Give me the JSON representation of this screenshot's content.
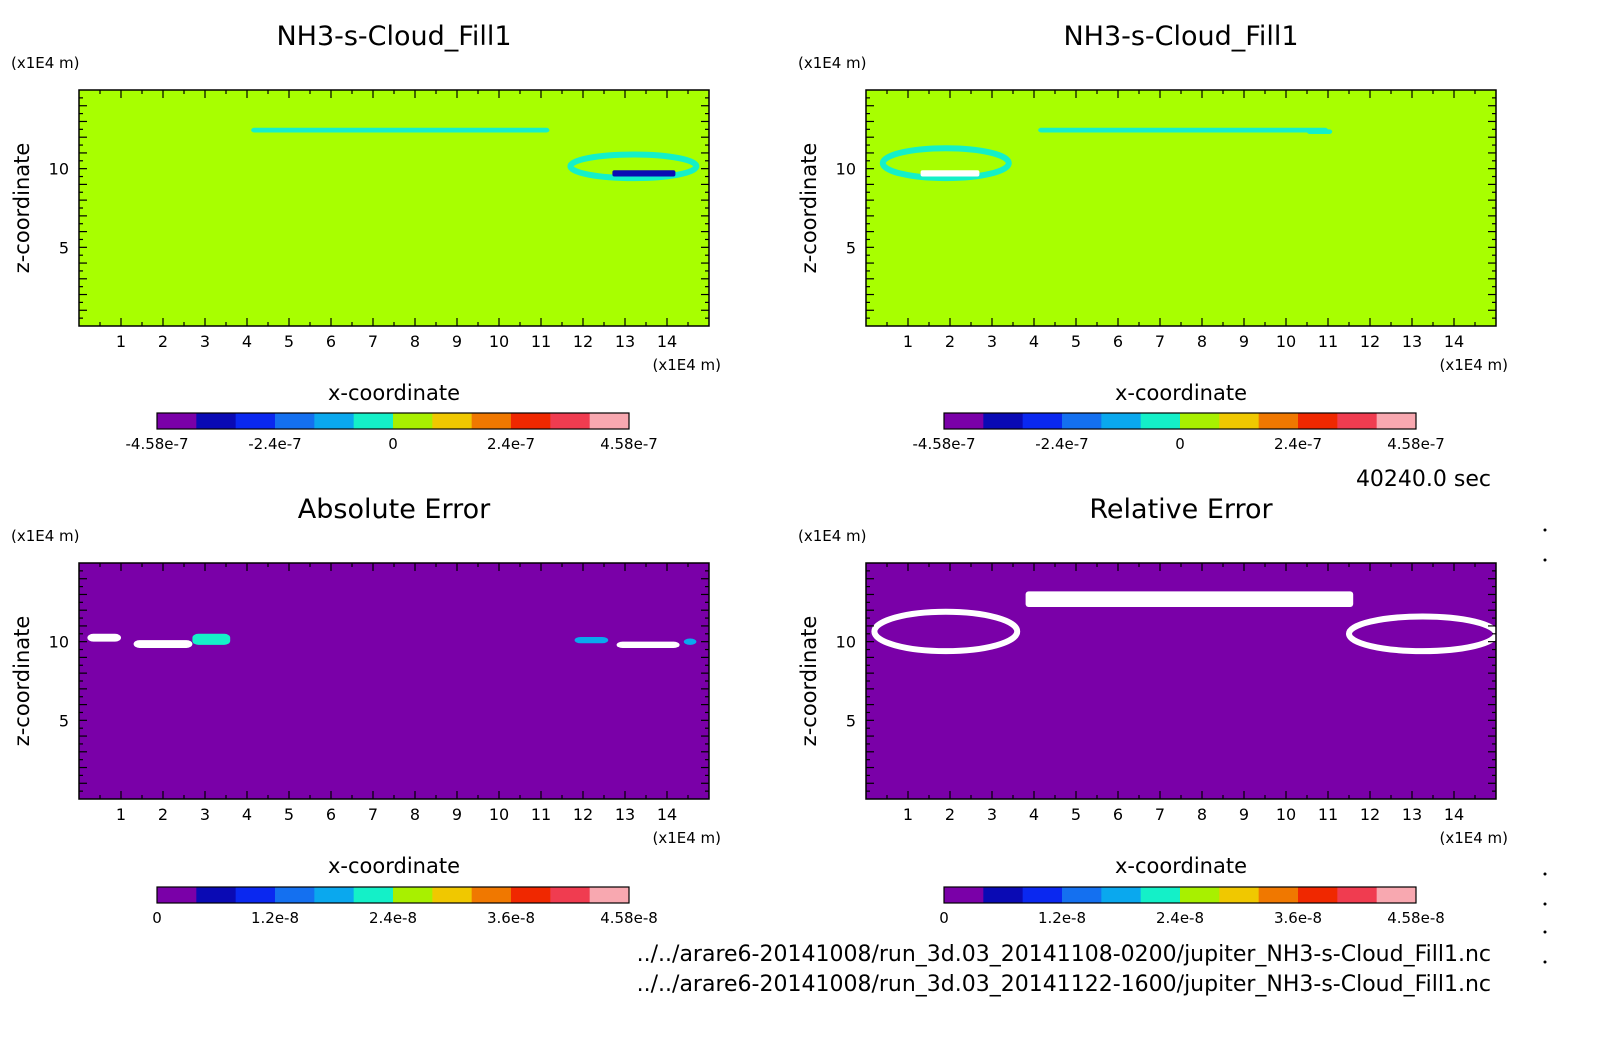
{
  "colormap": [
    "#7a00a8",
    "#0a0ab4",
    "#0a28f0",
    "#1470f0",
    "#0aa8ee",
    "#14f0c8",
    "#a8f000",
    "#f0c800",
    "#f07800",
    "#f02800",
    "#f03c50",
    "#f8a8b0"
  ],
  "panels": [
    {
      "title": "NH3-s-Cloud_Fill1",
      "xlabel": "x-coordinate",
      "ylabel": "z-coordinate",
      "x_unit": "(x1E4 m)",
      "y_unit": "(x1E4 m)",
      "background": "#a8ff00",
      "colorbar_ticks": [
        "-4.58e-7",
        "-2.4e-7",
        "0",
        "2.4e-7",
        "4.58e-7"
      ]
    },
    {
      "title": "NH3-s-Cloud_Fill1",
      "xlabel": "x-coordinate",
      "ylabel": "z-coordinate",
      "x_unit": "(x1E4 m)",
      "y_unit": "(x1E4 m)",
      "background": "#a8ff00",
      "colorbar_ticks": [
        "-4.58e-7",
        "-2.4e-7",
        "0",
        "2.4e-7",
        "4.58e-7"
      ]
    },
    {
      "title": "Absolute Error",
      "xlabel": "x-coordinate",
      "ylabel": "z-coordinate",
      "x_unit": "(x1E4 m)",
      "y_unit": "(x1E4 m)",
      "background": "#7a00a8",
      "colorbar_ticks": [
        "0",
        "1.2e-8",
        "2.4e-8",
        "3.6e-8",
        "4.58e-8"
      ]
    },
    {
      "title": "Relative Error",
      "xlabel": "x-coordinate",
      "ylabel": "z-coordinate",
      "x_unit": "(x1E4 m)",
      "y_unit": "(x1E4 m)",
      "background": "#7a00a8",
      "colorbar_ticks": [
        "0",
        "1.2e-8",
        "2.4e-8",
        "3.6e-8",
        "4.58e-8"
      ]
    }
  ],
  "chart_data": [
    {
      "type": "heatmap",
      "title": "NH3-s-Cloud_Fill1",
      "xlabel": "x-coordinate",
      "ylabel": "z-coordinate",
      "x_unit": "(x1E4 m)",
      "y_unit": "(x1E4 m)",
      "xlim": [
        0,
        15
      ],
      "ylim": [
        0,
        15
      ],
      "x_ticks": [
        1,
        2,
        3,
        4,
        5,
        6,
        7,
        8,
        9,
        10,
        11,
        12,
        13,
        14
      ],
      "y_ticks": [
        5,
        10
      ],
      "colorbar_range": [
        -4.58e-07,
        4.58e-07
      ],
      "colorbar_ticks": [
        "-4.58e-7",
        "-2.4e-7",
        "0",
        "2.4e-7",
        "4.58e-7"
      ],
      "background_value": 0,
      "features": [
        {
          "kind": "band",
          "x": [
            4.1,
            11.2
          ],
          "z": [
            12.3,
            12.6
          ],
          "color": "#14f0c8"
        },
        {
          "kind": "ring",
          "x": [
            11.7,
            14.7
          ],
          "z": [
            9.4,
            10.9
          ],
          "color": "#14f0c8"
        },
        {
          "kind": "strip",
          "x": [
            12.7,
            14.2
          ],
          "z": [
            9.5,
            9.9
          ],
          "color": "#0a0ab4"
        }
      ]
    },
    {
      "type": "heatmap",
      "title": "NH3-s-Cloud_Fill1",
      "xlabel": "x-coordinate",
      "ylabel": "z-coordinate",
      "x_unit": "(x1E4 m)",
      "y_unit": "(x1E4 m)",
      "xlim": [
        0,
        15
      ],
      "ylim": [
        0,
        15
      ],
      "x_ticks": [
        1,
        2,
        3,
        4,
        5,
        6,
        7,
        8,
        9,
        10,
        11,
        12,
        13,
        14
      ],
      "y_ticks": [
        5,
        10
      ],
      "colorbar_range": [
        -4.58e-07,
        4.58e-07
      ],
      "colorbar_ticks": [
        "-4.58e-7",
        "-2.4e-7",
        "0",
        "2.4e-7",
        "4.58e-7"
      ],
      "background_value": 0,
      "features": [
        {
          "kind": "band",
          "x": [
            4.1,
            11.0
          ],
          "z": [
            12.3,
            12.6
          ],
          "color": "#14f0c8"
        },
        {
          "kind": "band",
          "x": [
            10.5,
            11.1
          ],
          "z": [
            12.2,
            12.5
          ],
          "color": "#14f0c8"
        },
        {
          "kind": "ring",
          "x": [
            0.4,
            3.4
          ],
          "z": [
            9.4,
            11.3
          ],
          "color": "#14f0c8"
        },
        {
          "kind": "strip",
          "x": [
            1.3,
            2.7
          ],
          "z": [
            9.5,
            9.9
          ],
          "color": "#ffffff"
        }
      ]
    },
    {
      "type": "heatmap",
      "title": "Absolute Error",
      "xlabel": "x-coordinate",
      "ylabel": "z-coordinate",
      "x_unit": "(x1E4 m)",
      "y_unit": "(x1E4 m)",
      "xlim": [
        0,
        15
      ],
      "ylim": [
        0,
        15
      ],
      "x_ticks": [
        1,
        2,
        3,
        4,
        5,
        6,
        7,
        8,
        9,
        10,
        11,
        12,
        13,
        14
      ],
      "y_ticks": [
        5,
        10
      ],
      "colorbar_range": [
        0,
        4.58e-08
      ],
      "colorbar_ticks": [
        "0",
        "1.2e-8",
        "2.4e-8",
        "3.6e-8",
        "4.58e-8"
      ],
      "background_value": 0,
      "features": [
        {
          "kind": "blob",
          "x": [
            1.3,
            2.7
          ],
          "z": [
            9.6,
            10.1
          ],
          "color": "#ffffff"
        },
        {
          "kind": "blob",
          "x": [
            0.2,
            1.0
          ],
          "z": [
            10.0,
            10.5
          ],
          "color": "#ffffff"
        },
        {
          "kind": "blob",
          "x": [
            2.7,
            3.6
          ],
          "z": [
            9.8,
            10.5
          ],
          "color": "#14f0c8"
        },
        {
          "kind": "blob",
          "x": [
            12.8,
            14.3
          ],
          "z": [
            9.6,
            10.0
          ],
          "color": "#ffffff"
        },
        {
          "kind": "blob",
          "x": [
            11.8,
            12.6
          ],
          "z": [
            9.9,
            10.3
          ],
          "color": "#0aa8ee"
        },
        {
          "kind": "blob",
          "x": [
            14.4,
            14.7
          ],
          "z": [
            9.8,
            10.2
          ],
          "color": "#0aa8ee"
        }
      ]
    },
    {
      "type": "heatmap",
      "title": "Relative Error",
      "xlabel": "x-coordinate",
      "ylabel": "z-coordinate",
      "x_unit": "(x1E4 m)",
      "y_unit": "(x1E4 m)",
      "xlim": [
        0,
        15
      ],
      "ylim": [
        0,
        15
      ],
      "x_ticks": [
        1,
        2,
        3,
        4,
        5,
        6,
        7,
        8,
        9,
        10,
        11,
        12,
        13,
        14
      ],
      "y_ticks": [
        5,
        10
      ],
      "colorbar_range": [
        0,
        4.58e-08
      ],
      "colorbar_ticks": [
        "0",
        "1.2e-8",
        "2.4e-8",
        "3.6e-8",
        "4.58e-8"
      ],
      "background_value": 0,
      "features": [
        {
          "kind": "band",
          "x": [
            3.8,
            11.6
          ],
          "z": [
            12.2,
            13.2
          ],
          "color": "#ffffff"
        },
        {
          "kind": "ring",
          "x": [
            0.2,
            3.6
          ],
          "z": [
            9.4,
            11.9
          ],
          "color": "#ffffff"
        },
        {
          "kind": "ring",
          "x": [
            11.5,
            15.0
          ],
          "z": [
            9.4,
            11.6
          ],
          "color": "#ffffff"
        }
      ]
    }
  ],
  "info": {
    "time": "40240.0 sec",
    "file1": "../../arare6-20141008/run_3d.03_20141108-0200/jupiter_NH3-s-Cloud_Fill1.nc",
    "file2": "../../arare6-20141008/run_3d.03_20141122-1600/jupiter_NH3-s-Cloud_Fill1.nc"
  }
}
